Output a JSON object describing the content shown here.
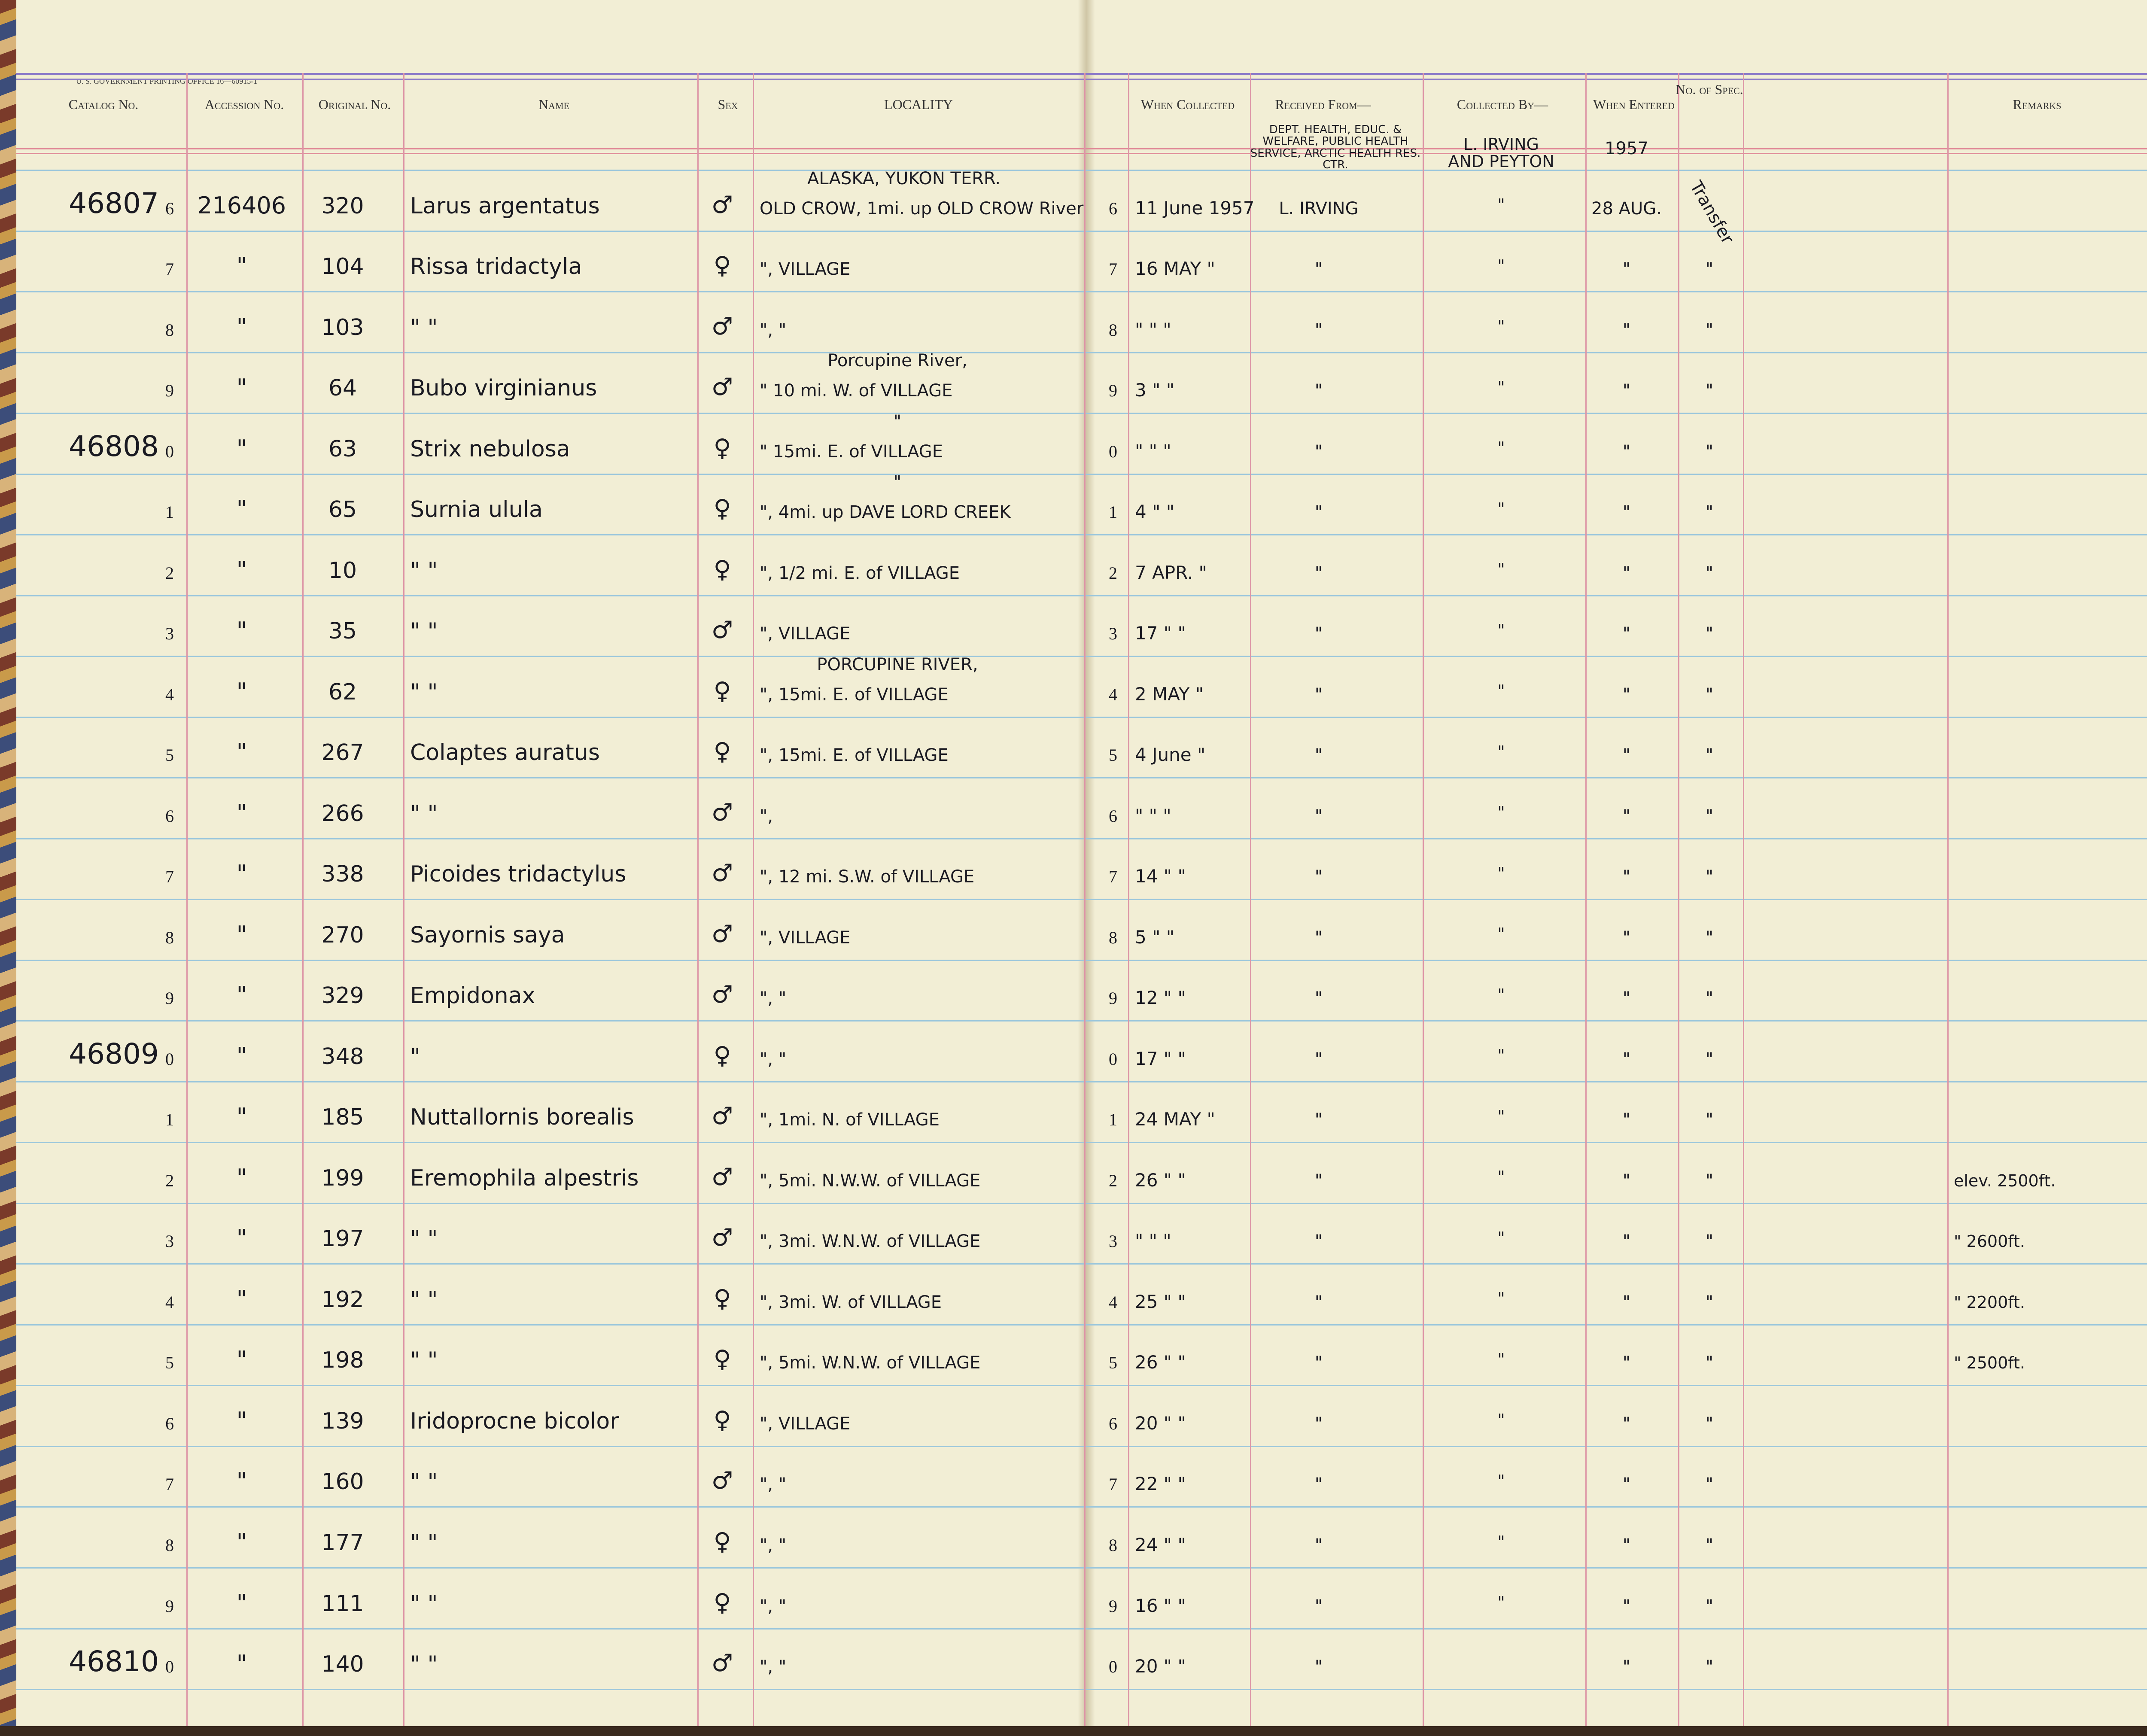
{
  "header": {
    "printer_note": "U. S. GOVERNMENT PRINTING OFFICE 16—60915-1",
    "columns": [
      "Catalog No.",
      "Accession No.",
      "Original No.",
      "Name",
      "Sex",
      "LOCALITY",
      "When Collected",
      "Received From—",
      "Collected By—",
      "When Entered",
      "No. of Spec.",
      "Remarks"
    ]
  },
  "rows": [
    {
      "cat": "46807",
      "d1": "6",
      "acc": "216406",
      "orig": "320",
      "name": "Larus argentatus",
      "sex": "♂",
      "loc_note": "ALASKA, YUKON TERR.",
      "loc": "OLD CROW, 1mi. up OLD CROW River",
      "d2": "6",
      "coll": "11 June 1957",
      "recv_note": "DEPT. HEALTH, EDUC. & WELFARE, PUBLIC HEALTH SERVICE, ARCTIC HEALTH RES. CTR.",
      "recv": "L. IRVING",
      "by": "L. IRVING AND PEYTON",
      "ent_note": "1957",
      "ent": "28 AUG.",
      "spec": "Transfer"
    },
    {
      "d1": "7",
      "acc": "\"",
      "orig": "104",
      "name": "Rissa tridactyla",
      "sex": "♀",
      "loc": "\", VILLAGE",
      "d2": "7",
      "coll": "16 MAY \"",
      "recv": "\"",
      "by": "\"",
      "ent": "\"",
      "spec": "\""
    },
    {
      "d1": "8",
      "acc": "\"",
      "orig": "103",
      "name": "\"      \"",
      "sex": "♂",
      "loc": "\",     \"",
      "d2": "8",
      "coll": "\"  \"  \"",
      "recv": "\"",
      "by": "\"",
      "ent": "\"",
      "spec": "\""
    },
    {
      "d1": "9",
      "acc": "\"",
      "orig": "64",
      "name": "Bubo virginianus",
      "sex": "♂",
      "loc_note": "Porcupine River,",
      "loc": "\"  10 mi. W. of VILLAGE",
      "d2": "9",
      "coll": "3  \"  \"",
      "recv": "\"",
      "by": "\"",
      "ent": "\"",
      "spec": "\""
    },
    {
      "cat": "46808",
      "d1": "0",
      "acc": "\"",
      "orig": "63",
      "name": "Strix nebulosa",
      "sex": "♀",
      "loc_note": "\"",
      "loc": "\"  15mi. E. of VILLAGE",
      "d2": "0",
      "coll": "\"  \"  \"",
      "recv": "\"",
      "by": "\"",
      "ent": "\"",
      "spec": "\""
    },
    {
      "d1": "1",
      "acc": "\"",
      "orig": "65",
      "name": "Surnia ulula",
      "sex": "♀",
      "loc_note": "\"",
      "loc": "\", 4mi. up DAVE LORD CREEK",
      "d2": "1",
      "coll": "4  \"  \"",
      "recv": "\"",
      "by": "\"",
      "ent": "\"",
      "spec": "\""
    },
    {
      "d1": "2",
      "acc": "\"",
      "orig": "10",
      "name": "\"      \"",
      "sex": "♀",
      "loc": "\", 1/2 mi. E. of VILLAGE",
      "d2": "2",
      "coll": "7 APR. \"",
      "recv": "\"",
      "by": "\"",
      "ent": "\"",
      "spec": "\""
    },
    {
      "d1": "3",
      "acc": "\"",
      "orig": "35",
      "name": "\"      \"",
      "sex": "♂",
      "loc": "\", VILLAGE",
      "d2": "3",
      "coll": "17  \"  \"",
      "recv": "\"",
      "by": "\"",
      "ent": "\"",
      "spec": "\""
    },
    {
      "d1": "4",
      "acc": "\"",
      "orig": "62",
      "name": "\"      \"",
      "sex": "♀",
      "loc_note": "PORCUPINE RIVER,",
      "loc": "\", 15mi. E. of VILLAGE",
      "d2": "4",
      "coll": "2 MAY \"",
      "recv": "\"",
      "by": "\"",
      "ent": "\"",
      "spec": "\""
    },
    {
      "d1": "5",
      "acc": "\"",
      "orig": "267",
      "name": "Colaptes auratus",
      "sex": "♀",
      "loc": "\", 15mi. E. of VILLAGE",
      "d2": "5",
      "coll": "4 June \"",
      "recv": "\"",
      "by": "\"",
      "ent": "\"",
      "spec": "\""
    },
    {
      "d1": "6",
      "acc": "\"",
      "orig": "266",
      "name": "\"      \"",
      "sex": "♂",
      "loc": "\",",
      "d2": "6",
      "coll": "\"  \"  \"",
      "recv": "\"",
      "by": "\"",
      "ent": "\"",
      "spec": "\""
    },
    {
      "d1": "7",
      "acc": "\"",
      "orig": "338",
      "name": "Picoides tridactylus",
      "sex": "♂",
      "loc": "\", 12 mi. S.W. of VILLAGE",
      "d2": "7",
      "coll": "14  \"  \"",
      "recv": "\"",
      "by": "\"",
      "ent": "\"",
      "spec": "\""
    },
    {
      "d1": "8",
      "acc": "\"",
      "orig": "270",
      "name": "Sayornis saya",
      "sex": "♂",
      "loc": "\", VILLAGE",
      "d2": "8",
      "coll": "5  \"  \"",
      "recv": "\"",
      "by": "\"",
      "ent": "\"",
      "spec": "\""
    },
    {
      "d1": "9",
      "acc": "\"",
      "orig": "329",
      "name": "Empidonax",
      "sex": "♂",
      "loc": "\",     \"",
      "d2": "9",
      "coll": "12  \"  \"",
      "recv": "\"",
      "by": "\"",
      "ent": "\"",
      "spec": "\""
    },
    {
      "cat": "46809",
      "d1": "0",
      "acc": "\"",
      "orig": "348",
      "name": "\"",
      "sex": "♀",
      "loc": "\",     \"",
      "d2": "0",
      "coll": "17  \"  \"",
      "recv": "\"",
      "by": "\"",
      "ent": "\"",
      "spec": "\""
    },
    {
      "d1": "1",
      "acc": "\"",
      "orig": "185",
      "name": "Nuttallornis borealis",
      "sex": "♂",
      "loc": "\", 1mi. N. of VILLAGE",
      "d2": "1",
      "coll": "24 MAY \"",
      "recv": "\"",
      "by": "\"",
      "ent": "\"",
      "spec": "\""
    },
    {
      "d1": "2",
      "acc": "\"",
      "orig": "199",
      "name": "Eremophila alpestris",
      "sex": "♂",
      "loc": "\", 5mi. N.W.W. of VILLAGE",
      "d2": "2",
      "coll": "26  \"  \"",
      "recv": "\"",
      "by": "\"",
      "ent": "\"",
      "spec": "\"",
      "rem": "elev. 2500ft."
    },
    {
      "d1": "3",
      "acc": "\"",
      "orig": "197",
      "name": "\"      \"",
      "sex": "♂",
      "loc": "\", 3mi. W.N.W. of VILLAGE",
      "d2": "3",
      "coll": "\"  \"  \"",
      "recv": "\"",
      "by": "\"",
      "ent": "\"",
      "spec": "\"",
      "rem": "\" 2600ft."
    },
    {
      "d1": "4",
      "acc": "\"",
      "orig": "192",
      "name": "\"      \"",
      "sex": "♀",
      "loc": "\", 3mi. W. of VILLAGE",
      "d2": "4",
      "coll": "25  \"  \"",
      "recv": "\"",
      "by": "\"",
      "ent": "\"",
      "spec": "\"",
      "rem": "\" 2200ft."
    },
    {
      "d1": "5",
      "acc": "\"",
      "orig": "198",
      "name": "\"      \"",
      "sex": "♀",
      "loc": "\", 5mi. W.N.W. of VILLAGE",
      "d2": "5",
      "coll": "26  \"  \"",
      "recv": "\"",
      "by": "\"",
      "ent": "\"",
      "spec": "\"",
      "rem": "\" 2500ft."
    },
    {
      "d1": "6",
      "acc": "\"",
      "orig": "139",
      "name": "Iridoprocne bicolor",
      "sex": "♀",
      "loc": "\", VILLAGE",
      "d2": "6",
      "coll": "20  \"  \"",
      "recv": "\"",
      "by": "\"",
      "ent": "\"",
      "spec": "\""
    },
    {
      "d1": "7",
      "acc": "\"",
      "orig": "160",
      "name": "\"      \"",
      "sex": "♂",
      "loc": "\",     \"",
      "d2": "7",
      "coll": "22  \"  \"",
      "recv": "\"",
      "by": "\"",
      "ent": "\"",
      "spec": "\""
    },
    {
      "d1": "8",
      "acc": "\"",
      "orig": "177",
      "name": "\"      \"",
      "sex": "♀",
      "loc": "\",     \"",
      "d2": "8",
      "coll": "24  \"  \"",
      "recv": "\"",
      "by": "\"",
      "ent": "\"",
      "spec": "\""
    },
    {
      "d1": "9",
      "acc": "\"",
      "orig": "111",
      "name": "\"      \"",
      "sex": "♀",
      "loc": "\",     \"",
      "d2": "9",
      "coll": "16  \"  \"",
      "recv": "\"",
      "by": "\"",
      "ent": "\"",
      "spec": "\""
    },
    {
      "cat": "46810",
      "d1": "0",
      "acc": "\"",
      "orig": "140",
      "name": "\"      \"",
      "sex": "♂",
      "loc": "\",     \"",
      "d2": "0",
      "coll": "20  \"  \"",
      "recv": "\"",
      "by": "\"",
      "ent": "\"",
      "spec": "\""
    }
  ]
}
